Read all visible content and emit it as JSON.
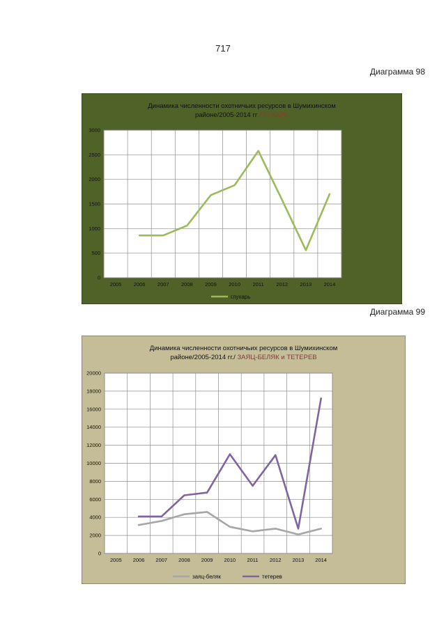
{
  "page": {
    "number": "717",
    "diagram_98_label": "Диаграмма 98",
    "diagram_99_label": "Диаграмма 99"
  },
  "colors": {
    "chart1_bg": "#4f6228",
    "chart2_bg": "#c4bd97",
    "grouse_line": "#9bbb59",
    "hare_line": "#a6a6a6",
    "blackgrouse_line": "#8064a2"
  },
  "chart_data": [
    {
      "type": "line",
      "title_line1": "Динамика численности охотничьих ресурсов  в  Шумихинском",
      "title_line2": "районе/2005-2014 гг",
      "title_highlight": "ГЛУХАРЬ",
      "categories": [
        "2005",
        "2006",
        "2007",
        "2008",
        "2009",
        "2010",
        "2011",
        "2012",
        "2013",
        "2014"
      ],
      "ylim": [
        0,
        3000
      ],
      "yticks": [
        0,
        500,
        1000,
        1500,
        2000,
        2500,
        3000
      ],
      "grid": true,
      "legend_position": "bottom",
      "series": [
        {
          "name": "глухарь",
          "color": "#9bbb59",
          "values": [
            null,
            860,
            860,
            1060,
            1680,
            1880,
            2580,
            1580,
            560,
            1700
          ]
        }
      ]
    },
    {
      "type": "line",
      "title_line1": "Динамика численности  охотничьих ресурсов   в  Шумихинском",
      "title_line2": "районе/2005-2014  гг./",
      "title_highlight": "ЗАЯЦ-БЕЛЯК и ТЕТЕРЕВ",
      "categories": [
        "2005",
        "2006",
        "2007",
        "2008",
        "2009",
        "2010",
        "2011",
        "2012",
        "2013",
        "2014"
      ],
      "ylim": [
        0,
        20000
      ],
      "yticks": [
        0,
        2000,
        4000,
        6000,
        8000,
        10000,
        12000,
        14000,
        16000,
        18000,
        20000
      ],
      "grid": true,
      "legend_position": "bottom",
      "series": [
        {
          "name": "заяц-беляк",
          "color": "#a6a6a6",
          "values": [
            null,
            3150,
            3600,
            4350,
            4600,
            2950,
            2450,
            2750,
            2100,
            2750
          ]
        },
        {
          "name": "тетерев",
          "color": "#8064a2",
          "values": [
            null,
            4100,
            4100,
            6450,
            6750,
            11000,
            7500,
            10900,
            2750,
            17200
          ]
        }
      ]
    }
  ]
}
